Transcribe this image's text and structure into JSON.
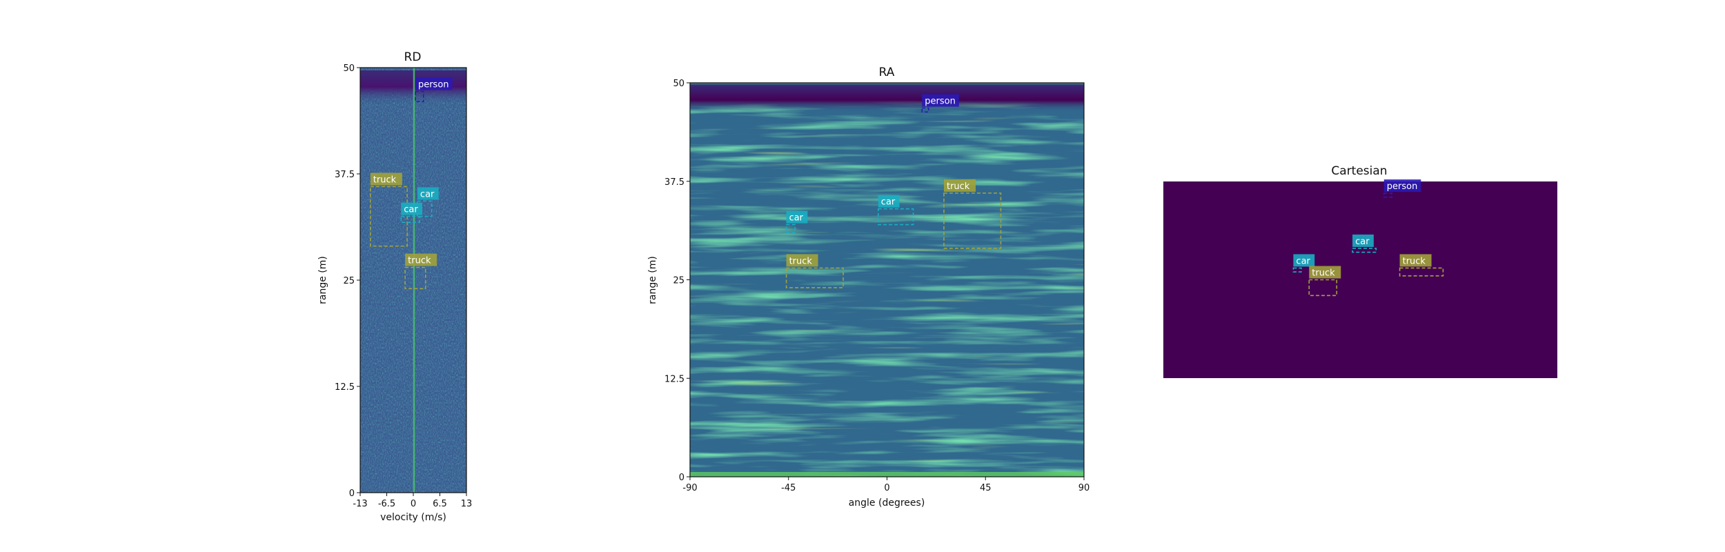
{
  "chart_data": [
    {
      "type": "heatmap",
      "id": "rd",
      "title": "RD",
      "xlabel": "velocity (m/s)",
      "ylabel": "range (m)",
      "xlim": [
        -13,
        13
      ],
      "ylim": [
        0,
        50
      ],
      "xticks": [
        "-13",
        "-6.5",
        "0",
        "6.5",
        "13"
      ],
      "xtick_values": [
        -13,
        -6.5,
        0,
        6.5,
        13
      ],
      "yticks": [
        "0",
        "12.5",
        "25",
        "37.5",
        "50"
      ],
      "ytick_values": [
        0,
        12.5,
        25,
        37.5,
        50
      ],
      "background_color": "#3b5b91",
      "detections": [
        {
          "label": "person",
          "x0": 0.5,
          "x1": 2.5,
          "y0": 46.0,
          "y1": 47.2,
          "color": "#2a1ab5"
        },
        {
          "label": "truck",
          "x0": -10.5,
          "x1": -1.5,
          "y0": 29.0,
          "y1": 36.0,
          "color": "#a2a23a"
        },
        {
          "label": "car",
          "x0": 1.0,
          "x1": 4.5,
          "y0": 32.5,
          "y1": 34.3,
          "color": "#1aaec2"
        },
        {
          "label": "car",
          "x0": -3.0,
          "x1": 1.5,
          "y0": 31.8,
          "y1": 32.5,
          "color": "#1aaec2"
        },
        {
          "label": "truck",
          "x0": -2.0,
          "x1": 3.0,
          "y0": 24.0,
          "y1": 26.5,
          "color": "#a2a23a"
        }
      ]
    },
    {
      "type": "heatmap",
      "id": "ra",
      "title": "RA",
      "xlabel": "angle (degrees)",
      "ylabel": "range (m)",
      "xlim": [
        -90,
        90
      ],
      "ylim": [
        0,
        50
      ],
      "xticks": [
        "-90",
        "-45",
        "0",
        "45",
        "90"
      ],
      "xtick_values": [
        -90,
        -45,
        0,
        45,
        90
      ],
      "yticks": [
        "0",
        "12.5",
        "25",
        "37.5",
        "50"
      ],
      "ytick_values": [
        0,
        12.5,
        25,
        37.5,
        50
      ],
      "background_color": "#31688e",
      "detections": [
        {
          "label": "person",
          "x0": 16,
          "x1": 19,
          "y0": 46.3,
          "y1": 46.8,
          "color": "#2a1ab5"
        },
        {
          "label": "truck",
          "x0": 26,
          "x1": 52,
          "y0": 29.0,
          "y1": 36.0,
          "color": "#a2a23a"
        },
        {
          "label": "car",
          "x0": -4,
          "x1": 12,
          "y0": 32.0,
          "y1": 34.0,
          "color": "#1aaec2"
        },
        {
          "label": "car",
          "x0": -46,
          "x1": -42,
          "y0": 31.0,
          "y1": 32.0,
          "color": "#1aaec2"
        },
        {
          "label": "truck",
          "x0": -46,
          "x1": -20,
          "y0": 24.0,
          "y1": 26.5,
          "color": "#a2a23a"
        }
      ]
    },
    {
      "type": "heatmap",
      "id": "cartesian",
      "title": "Cartesian",
      "xlabel": "",
      "ylabel": "",
      "xlim": [
        -50,
        50
      ],
      "ylim": [
        0,
        50
      ],
      "background_color": "#440154",
      "detections": [
        {
          "label": "person",
          "x0": 6,
          "x1": 8,
          "y0": 46,
          "y1": 47,
          "color": "#2a1ab5"
        },
        {
          "label": "car",
          "x0": -2,
          "x1": 4,
          "y0": 32,
          "y1": 33,
          "color": "#1aaec2"
        },
        {
          "label": "truck",
          "x0": 10,
          "x1": 21,
          "y0": 26,
          "y1": 28,
          "color": "#a2a23a"
        },
        {
          "label": "car",
          "x0": -17,
          "x1": -15,
          "y0": 27,
          "y1": 28,
          "color": "#1aaec2"
        },
        {
          "label": "truck",
          "x0": -13,
          "x1": -6,
          "y0": 21,
          "y1": 25,
          "color": "#a2a23a"
        }
      ]
    }
  ]
}
